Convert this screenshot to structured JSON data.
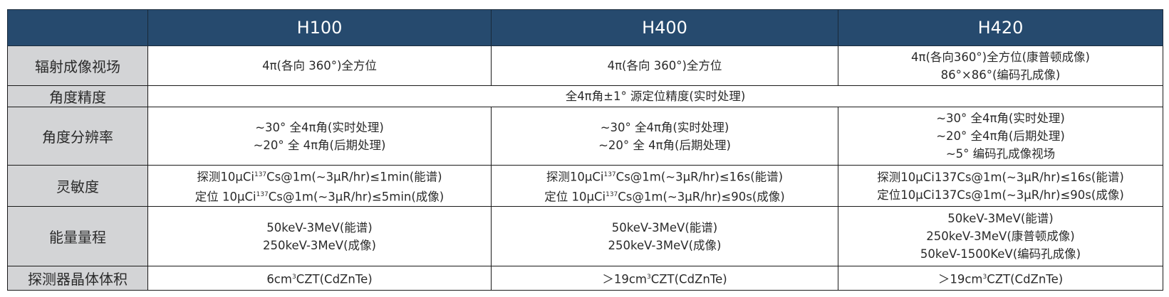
{
  "header": {
    "corner": "",
    "models": [
      "H100",
      "H400",
      "H420"
    ]
  },
  "colors": {
    "header_bg": "#264a6e",
    "label_bg": "#d3d4d6"
  },
  "rows": [
    {
      "label": "辐射成像视场",
      "cells": [
        [
          "4π(各向 360°)全方位"
        ],
        [
          "4π(各向 360°)全方位"
        ],
        [
          "4π(各向360°)全方位(康普顿成像)",
          "86°×86°(编码孔成像)"
        ]
      ]
    },
    {
      "label": "角度精度",
      "merged": "全4π角±1° 源定位精度(实时处理)"
    },
    {
      "label": "角度分辨率",
      "cells": [
        [
          "~30° 全4π角(实时处理)",
          "~20° 全 4π角(后期处理)"
        ],
        [
          "~30° 全4π角(实时处理)",
          "~20° 全 4π角(后期处理)"
        ],
        [
          "~30° 全4π角(实时处理)",
          "~20° 全4π角(后期处理)",
          "~5° 编码孔成像视场"
        ]
      ]
    },
    {
      "label": "灵敏度",
      "sens": {
        "h100": [
          {
            "pre": "探测10μCi",
            "sup": "137",
            "post": "Cs@1m(~3μR/hr)≤1min(能谱)"
          },
          {
            "pre": "定位 10μCi",
            "sup": "137",
            "post": "Cs@1m(~3μR/hr)≤5min(成像)"
          }
        ],
        "h400": [
          {
            "pre": "探测10μCi",
            "sup": "137",
            "post": "Cs@1m(~3μR/hr)≤16s(能谱)"
          },
          {
            "pre": "定位 10μCi",
            "sup": "137",
            "post": "Cs@1m(~3μR/hr)≤90s(成像)"
          }
        ],
        "h420": [
          "探测10μCi137Cs@1m(~3μR/hr)≤16s(能谱)",
          "定位10μCi137Cs@1m(~3μR/hr)≤90s(成像)"
        ]
      }
    },
    {
      "label": "能量量程",
      "cells": [
        [
          "50keV-3MeV(能谱)",
          "250keV-3MeV(成像)"
        ],
        [
          "50keV-3MeV(能谱)",
          "250keV-3MeV(成像)"
        ],
        [
          "50keV-3MeV(能谱)",
          "250keV-3MeV(康普顿成像)",
          "50keV-1500KeV(编码孔成像)"
        ]
      ]
    },
    {
      "label": "探测器晶体体积",
      "vol": [
        {
          "pre": "6cm",
          "sup": "3",
          "post": "CZT(CdZnTe)"
        },
        {
          "pre": "＞19cm",
          "sup": "3",
          "post": "CZT(CdZnTe)"
        },
        {
          "pre": "＞19cm",
          "sup": "3",
          "post": "CZT(CdZnTe)"
        }
      ]
    }
  ]
}
